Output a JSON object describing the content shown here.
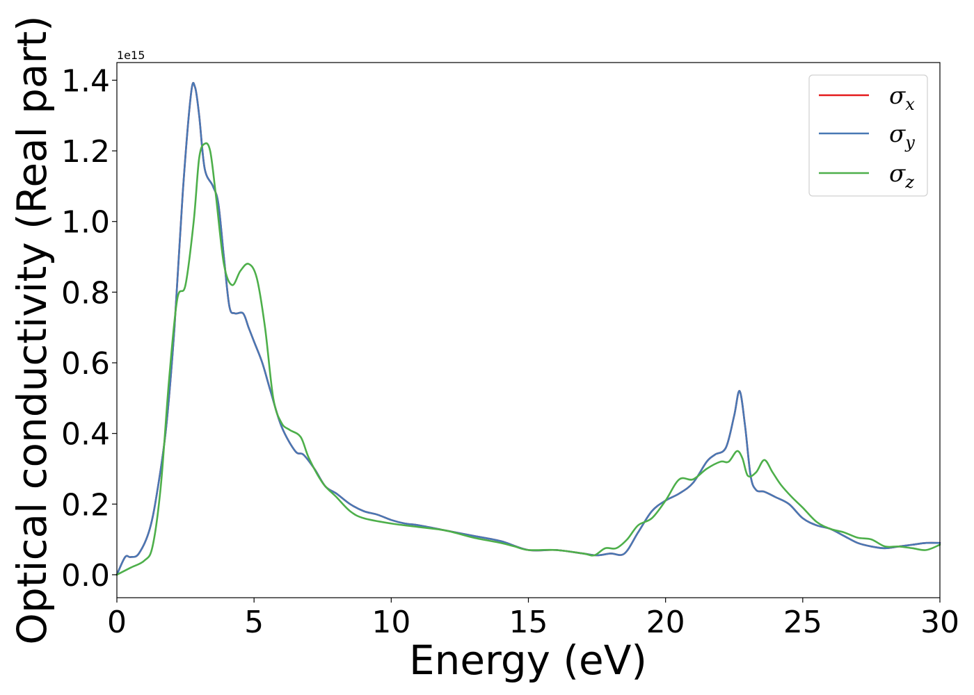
{
  "chart_data": {
    "type": "line",
    "title": "",
    "xlabel": "Energy (eV)",
    "ylabel": "Optical conductivity (Real part)",
    "y_offset_label": "1e15",
    "xlim": [
      0,
      30
    ],
    "ylim": [
      -0.065,
      1.45
    ],
    "xticks": [
      0,
      5,
      10,
      15,
      20,
      25,
      30
    ],
    "yticks": [
      0.0,
      0.2,
      0.4,
      0.6,
      0.8,
      1.0,
      1.2,
      1.4
    ],
    "xtick_labels": [
      "0",
      "5",
      "10",
      "15",
      "20",
      "25",
      "30"
    ],
    "ytick_labels": [
      "0.0",
      "0.2",
      "0.4",
      "0.6",
      "0.8",
      "1.0",
      "1.2",
      "1.4"
    ],
    "grid": false,
    "legend_position": "top-right",
    "series": [
      {
        "name": "σx",
        "legend_base": "σ",
        "legend_sub": "x",
        "color": "#e41a1c",
        "x": [
          0,
          0.3,
          0.5,
          0.8,
          1.2,
          1.5,
          1.8,
          2.1,
          2.4,
          2.7,
          2.85,
          3.0,
          3.2,
          3.5,
          3.7,
          3.9,
          4.1,
          4.3,
          4.6,
          4.8,
          5.0,
          5.3,
          5.6,
          6.0,
          6.5,
          6.8,
          7.2,
          7.6,
          8.0,
          8.5,
          9.0,
          9.5,
          10.0,
          10.5,
          11.0,
          12.0,
          13.0,
          14.0,
          15.0,
          16.0,
          17.0,
          17.5,
          18.0,
          18.5,
          19.0,
          19.5,
          20.0,
          20.5,
          21.0,
          21.5,
          21.8,
          22.2,
          22.5,
          22.7,
          22.9,
          23.1,
          23.3,
          23.6,
          24.0,
          24.5,
          25.0,
          25.5,
          26.0,
          26.5,
          27.0,
          27.5,
          28.0,
          28.5,
          29.0,
          29.5,
          30.0
        ],
        "y": [
          0.0,
          0.05,
          0.05,
          0.06,
          0.13,
          0.25,
          0.42,
          0.7,
          1.08,
          1.36,
          1.38,
          1.3,
          1.15,
          1.1,
          1.05,
          0.9,
          0.76,
          0.74,
          0.74,
          0.7,
          0.66,
          0.6,
          0.52,
          0.42,
          0.35,
          0.34,
          0.3,
          0.25,
          0.23,
          0.2,
          0.18,
          0.17,
          0.155,
          0.145,
          0.14,
          0.125,
          0.11,
          0.095,
          0.07,
          0.07,
          0.06,
          0.055,
          0.06,
          0.06,
          0.12,
          0.18,
          0.21,
          0.23,
          0.26,
          0.32,
          0.34,
          0.36,
          0.45,
          0.52,
          0.42,
          0.28,
          0.24,
          0.235,
          0.22,
          0.2,
          0.16,
          0.14,
          0.13,
          0.11,
          0.09,
          0.08,
          0.075,
          0.08,
          0.085,
          0.09,
          0.09
        ]
      },
      {
        "name": "σy",
        "legend_base": "σ",
        "legend_sub": "y",
        "color": "#4878b4",
        "x": [
          0,
          0.3,
          0.5,
          0.8,
          1.2,
          1.5,
          1.8,
          2.1,
          2.4,
          2.7,
          2.85,
          3.0,
          3.2,
          3.5,
          3.7,
          3.9,
          4.1,
          4.3,
          4.6,
          4.8,
          5.0,
          5.3,
          5.6,
          6.0,
          6.5,
          6.8,
          7.2,
          7.6,
          8.0,
          8.5,
          9.0,
          9.5,
          10.0,
          10.5,
          11.0,
          12.0,
          13.0,
          14.0,
          15.0,
          16.0,
          17.0,
          17.5,
          18.0,
          18.5,
          19.0,
          19.5,
          20.0,
          20.5,
          21.0,
          21.5,
          21.8,
          22.2,
          22.5,
          22.7,
          22.9,
          23.1,
          23.3,
          23.6,
          24.0,
          24.5,
          25.0,
          25.5,
          26.0,
          26.5,
          27.0,
          27.5,
          28.0,
          28.5,
          29.0,
          29.5,
          30.0
        ],
        "y": [
          0.0,
          0.05,
          0.05,
          0.06,
          0.13,
          0.25,
          0.42,
          0.7,
          1.08,
          1.36,
          1.38,
          1.3,
          1.15,
          1.1,
          1.05,
          0.9,
          0.76,
          0.74,
          0.74,
          0.7,
          0.66,
          0.6,
          0.52,
          0.42,
          0.35,
          0.34,
          0.3,
          0.25,
          0.23,
          0.2,
          0.18,
          0.17,
          0.155,
          0.145,
          0.14,
          0.125,
          0.11,
          0.095,
          0.07,
          0.07,
          0.06,
          0.055,
          0.06,
          0.06,
          0.12,
          0.18,
          0.21,
          0.23,
          0.26,
          0.32,
          0.34,
          0.36,
          0.45,
          0.52,
          0.42,
          0.28,
          0.24,
          0.235,
          0.22,
          0.2,
          0.16,
          0.14,
          0.13,
          0.11,
          0.09,
          0.08,
          0.075,
          0.08,
          0.085,
          0.09,
          0.09
        ]
      },
      {
        "name": "σz",
        "legend_base": "σ",
        "legend_sub": "z",
        "color": "#4daf4a",
        "x": [
          0,
          0.5,
          1.0,
          1.3,
          1.6,
          1.9,
          2.2,
          2.5,
          2.8,
          3.0,
          3.2,
          3.4,
          3.6,
          3.9,
          4.2,
          4.5,
          4.8,
          5.1,
          5.4,
          5.7,
          6.0,
          6.3,
          6.7,
          7.0,
          7.5,
          8.0,
          8.5,
          9.0,
          10.0,
          11.0,
          12.0,
          13.0,
          14.0,
          14.5,
          15.0,
          16.0,
          17.0,
          17.4,
          17.8,
          18.2,
          18.6,
          19.0,
          19.5,
          20.0,
          20.5,
          21.0,
          21.5,
          22.0,
          22.3,
          22.6,
          22.8,
          23.0,
          23.3,
          23.6,
          23.9,
          24.2,
          24.6,
          25.0,
          25.5,
          26.0,
          26.5,
          27.0,
          27.5,
          28.0,
          28.5,
          29.0,
          29.5,
          30.0
        ],
        "y": [
          0.0,
          0.02,
          0.04,
          0.08,
          0.25,
          0.55,
          0.78,
          0.82,
          1.0,
          1.18,
          1.22,
          1.2,
          1.08,
          0.88,
          0.82,
          0.86,
          0.88,
          0.84,
          0.7,
          0.5,
          0.43,
          0.41,
          0.39,
          0.33,
          0.26,
          0.22,
          0.18,
          0.16,
          0.145,
          0.135,
          0.125,
          0.105,
          0.09,
          0.08,
          0.07,
          0.07,
          0.06,
          0.055,
          0.075,
          0.075,
          0.1,
          0.14,
          0.16,
          0.21,
          0.27,
          0.27,
          0.3,
          0.32,
          0.32,
          0.35,
          0.33,
          0.28,
          0.29,
          0.325,
          0.29,
          0.255,
          0.22,
          0.19,
          0.15,
          0.13,
          0.12,
          0.105,
          0.1,
          0.08,
          0.08,
          0.075,
          0.07,
          0.085
        ]
      }
    ]
  }
}
